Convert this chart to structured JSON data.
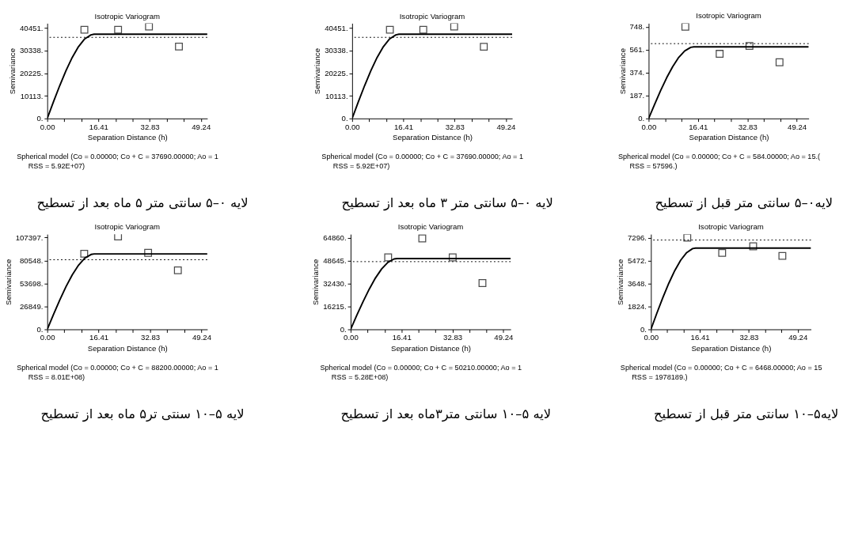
{
  "chart_data": [
    {
      "type": "scatter",
      "title": "Isotropic Variogram",
      "xlabel": "Separation Distance (h)",
      "ylabel": "Semivariance",
      "xlim": [
        0,
        51.3
      ],
      "ylim": [
        0,
        42600
      ],
      "xticks": [
        {
          "value": 0,
          "label": "0.00"
        },
        {
          "value": 5.47,
          "label": null
        },
        {
          "value": 10.94,
          "label": null
        },
        {
          "value": 16.41,
          "label": "16.41"
        },
        {
          "value": 21.88,
          "label": null
        },
        {
          "value": 27.35,
          "label": null
        },
        {
          "value": 32.83,
          "label": "32.83"
        },
        {
          "value": 38.3,
          "label": null
        },
        {
          "value": 43.77,
          "label": null
        },
        {
          "value": 49.24,
          "label": "49.24"
        }
      ],
      "yticks": [
        {
          "value": 0,
          "label": "0."
        },
        {
          "value": 10113,
          "label": "10113."
        },
        {
          "value": 20225,
          "label": "20225."
        },
        {
          "value": 30338,
          "label": "30338."
        },
        {
          "value": 40451,
          "label": "40451."
        }
      ],
      "series": [
        {
          "marker": "square",
          "color": "#000000",
          "x": [
            11.9,
            22.7,
            32.6,
            42.2
          ],
          "values": [
            39700,
            39700,
            41100,
            32200
          ]
        },
        {
          "type": "line",
          "color": "#000000",
          "line_style": "solid",
          "x": [
            0,
            2,
            4,
            6,
            8,
            10,
            12,
            14,
            15,
            51.3
          ],
          "values": [
            0,
            7500,
            14700,
            21400,
            27300,
            32100,
            35600,
            37400,
            37700,
            37700
          ]
        }
      ],
      "ref_lines": [
        {
          "axis": "y",
          "value": 36300,
          "color": "#000000",
          "line_style": "dotted"
        }
      ],
      "annotations": [
        "Spherical model (Co = 0.00000; Co + C = 37690.00000; Ao = 1",
        "RSS = 5.92E+07)",
        "لایه ۰–۵ سانتی متر ۵ ماه بعد از تسطیح"
      ]
    },
    {
      "type": "scatter",
      "title": "Isotropic Variogram",
      "xlabel": "Separation Distance (h)",
      "ylabel": "Semivariance",
      "xlim": [
        0,
        51.3
      ],
      "ylim": [
        0,
        42600
      ],
      "xticks": [
        {
          "value": 0,
          "label": "0.00"
        },
        {
          "value": 5.47,
          "label": null
        },
        {
          "value": 10.94,
          "label": null
        },
        {
          "value": 16.41,
          "label": "16.41"
        },
        {
          "value": 21.88,
          "label": null
        },
        {
          "value": 27.35,
          "label": null
        },
        {
          "value": 32.83,
          "label": "32.83"
        },
        {
          "value": 38.3,
          "label": null
        },
        {
          "value": 43.77,
          "label": null
        },
        {
          "value": 49.24,
          "label": "49.24"
        }
      ],
      "yticks": [
        {
          "value": 0,
          "label": "0."
        },
        {
          "value": 10113,
          "label": "10113."
        },
        {
          "value": 20225,
          "label": "20225."
        },
        {
          "value": 30338,
          "label": "30338."
        },
        {
          "value": 40451,
          "label": "40451."
        }
      ],
      "series": [
        {
          "marker": "square",
          "color": "#000000",
          "x": [
            12.1,
            22.8,
            32.7,
            42.2
          ],
          "values": [
            39700,
            39700,
            41100,
            32100
          ]
        },
        {
          "type": "line",
          "color": "#000000",
          "line_style": "solid",
          "x": [
            0,
            2,
            4,
            6,
            8,
            10,
            12,
            14,
            15,
            51.3
          ],
          "values": [
            0,
            7500,
            14700,
            21400,
            27300,
            32100,
            35600,
            37400,
            37700,
            37700
          ]
        }
      ],
      "ref_lines": [
        {
          "axis": "y",
          "value": 36300,
          "color": "#000000",
          "line_style": "dotted"
        }
      ],
      "annotations": [
        "Spherical model (Co = 0.00000; Co + C = 37690.00000; Ao = 1",
        "RSS = 5.92E+07)",
        "لایه ۰–۵ سانتی متر ۳ ماه بعد از تسطیح"
      ]
    },
    {
      "type": "scatter",
      "title": "Isotropic Variogram",
      "xlabel": "Separation Distance (h)",
      "ylabel": "Semivariance",
      "xlim": [
        0,
        53.2
      ],
      "ylim": [
        0,
        776
      ],
      "xticks": [
        {
          "value": 0,
          "label": "0.00"
        },
        {
          "value": 5.47,
          "label": null
        },
        {
          "value": 10.94,
          "label": null
        },
        {
          "value": 16.41,
          "label": "16.41"
        },
        {
          "value": 21.88,
          "label": null
        },
        {
          "value": 27.35,
          "label": null
        },
        {
          "value": 32.83,
          "label": "32.83"
        },
        {
          "value": 38.3,
          "label": null
        },
        {
          "value": 43.77,
          "label": null
        },
        {
          "value": 49.24,
          "label": "49.24"
        }
      ],
      "yticks": [
        {
          "value": 0,
          "label": "0."
        },
        {
          "value": 187,
          "label": "187."
        },
        {
          "value": 374,
          "label": "374."
        },
        {
          "value": 561,
          "label": "561."
        },
        {
          "value": 748,
          "label": "748."
        }
      ],
      "series": [
        {
          "marker": "square",
          "color": "#000000",
          "x": [
            12.2,
            23.6,
            33.5,
            43.5
          ],
          "values": [
            748,
            527,
            591,
            458
          ]
        },
        {
          "type": "line",
          "color": "#000000",
          "line_style": "solid",
          "x": [
            0,
            2,
            4,
            6,
            8,
            10,
            12,
            14,
            15,
            53.2
          ],
          "values": [
            0,
            116,
            228,
            332,
            423,
            498,
            551,
            580,
            584,
            584
          ]
        }
      ],
      "ref_lines": [
        {
          "axis": "y",
          "value": 610,
          "color": "#000000",
          "line_style": "dotted"
        }
      ],
      "annotations": [
        "Spherical model (Co = 0.00000; Co + C = 584.00000; Ao = 15.(",
        "RSS = 57596.)",
        "لایه۰–۵ سانتی متر قبل از تسطیح"
      ]
    },
    {
      "type": "scatter",
      "title": "Isotropic Variogram",
      "xlabel": "Separation Distance (h)",
      "ylabel": "Semivariance",
      "xlim": [
        0,
        51.1
      ],
      "ylim": [
        0,
        111300
      ],
      "xticks": [
        {
          "value": 0,
          "label": "0.00"
        },
        {
          "value": 5.47,
          "label": null
        },
        {
          "value": 10.94,
          "label": null
        },
        {
          "value": 16.41,
          "label": "16.41"
        },
        {
          "value": 21.88,
          "label": null
        },
        {
          "value": 27.35,
          "label": null
        },
        {
          "value": 32.83,
          "label": "32.83"
        },
        {
          "value": 38.3,
          "label": null
        },
        {
          "value": 43.77,
          "label": null
        },
        {
          "value": 49.24,
          "label": "49.24"
        }
      ],
      "yticks": [
        {
          "value": 0,
          "label": "0."
        },
        {
          "value": 26849,
          "label": "26849."
        },
        {
          "value": 53698,
          "label": "53698."
        },
        {
          "value": 80548,
          "label": "80548."
        },
        {
          "value": 107397,
          "label": "107397."
        }
      ],
      "series": [
        {
          "marker": "square",
          "color": "#000000",
          "x": [
            11.8,
            22.6,
            32.2,
            41.7
          ],
          "values": [
            88500,
            108700,
            89500,
            69000
          ]
        },
        {
          "type": "line",
          "color": "#000000",
          "line_style": "solid",
          "x": [
            0,
            2,
            4,
            6,
            8,
            10,
            12,
            14,
            15,
            51.1
          ],
          "values": [
            0,
            17500,
            34400,
            50100,
            63900,
            75100,
            83300,
            87600,
            88200,
            88200
          ]
        }
      ],
      "ref_lines": [
        {
          "axis": "y",
          "value": 81400,
          "color": "#000000",
          "line_style": "dotted"
        }
      ],
      "annotations": [
        "Spherical model (Co = 0.00000; Co + C = 88200.00000; Ao = 1",
        "RSS = 8.01E+08)",
        "لایه ۵–۱۰ سنتی  تر۵ ماه بعد از تسطیح"
      ]
    },
    {
      "type": "scatter",
      "title": "Isotropic Variogram",
      "xlabel": "Separation Distance (h)",
      "ylabel": "Semivariance",
      "xlim": [
        0,
        51.6
      ],
      "ylim": [
        0,
        67460
      ],
      "xticks": [
        {
          "value": 0,
          "label": "0.00"
        },
        {
          "value": 5.47,
          "label": null
        },
        {
          "value": 10.94,
          "label": null
        },
        {
          "value": 16.41,
          "label": "16.41"
        },
        {
          "value": 21.88,
          "label": null
        },
        {
          "value": 27.35,
          "label": null
        },
        {
          "value": 32.83,
          "label": "32.83"
        },
        {
          "value": 38.3,
          "label": null
        },
        {
          "value": 43.77,
          "label": null
        },
        {
          "value": 49.24,
          "label": "49.24"
        }
      ],
      "yticks": [
        {
          "value": 0,
          "label": "0."
        },
        {
          "value": 16215,
          "label": "16215."
        },
        {
          "value": 32430,
          "label": "32430."
        },
        {
          "value": 48645,
          "label": "48645."
        },
        {
          "value": 64860,
          "label": "64860."
        }
      ],
      "series": [
        {
          "marker": "square",
          "color": "#000000",
          "x": [
            12.1,
            23.1,
            32.9,
            42.5
          ],
          "values": [
            51000,
            64500,
            51000,
            32800
          ]
        },
        {
          "type": "line",
          "color": "#000000",
          "line_style": "solid",
          "x": [
            0,
            2,
            4,
            6,
            8,
            10,
            12,
            14,
            15,
            51.6
          ],
          "values": [
            0,
            10000,
            19600,
            28500,
            36400,
            42800,
            47400,
            49900,
            50200,
            50200
          ]
        }
      ],
      "ref_lines": [
        {
          "axis": "y",
          "value": 48000,
          "color": "#000000",
          "line_style": "dotted"
        }
      ],
      "annotations": [
        "Spherical model (Co = 0.00000; Co + C = 50210.00000; Ao = 1",
        "RSS = 5.28E+08)",
        "لایه ۵–۱۰ سانتی متر۳ماه بعد از تسطیح"
      ]
    },
    {
      "type": "scatter",
      "title": "Isotropic Variogram",
      "xlabel": "Separation Distance (h)",
      "ylabel": "Semivariance",
      "xlim": [
        0,
        53.7
      ],
      "ylim": [
        0,
        7576
      ],
      "xticks": [
        {
          "value": 0,
          "label": "0.00"
        },
        {
          "value": 5.47,
          "label": null
        },
        {
          "value": 10.94,
          "label": null
        },
        {
          "value": 16.41,
          "label": "16.41"
        },
        {
          "value": 21.88,
          "label": null
        },
        {
          "value": 27.35,
          "label": null
        },
        {
          "value": 32.83,
          "label": "32.83"
        },
        {
          "value": 38.3,
          "label": null
        },
        {
          "value": 43.77,
          "label": null
        },
        {
          "value": 49.24,
          "label": "49.24"
        }
      ],
      "yticks": [
        {
          "value": 0,
          "label": "0."
        },
        {
          "value": 1824,
          "label": "1824."
        },
        {
          "value": 3648,
          "label": "3648."
        },
        {
          "value": 5472,
          "label": "5472."
        },
        {
          "value": 7296,
          "label": "7296."
        }
      ],
      "series": [
        {
          "marker": "square",
          "color": "#000000",
          "x": [
            12.2,
            23.9,
            34.3,
            44.1
          ],
          "values": [
            7300,
            6080,
            6610,
            5850
          ]
        },
        {
          "type": "line",
          "color": "#000000",
          "line_style": "solid",
          "x": [
            0,
            2,
            4,
            6,
            8,
            10,
            12,
            14,
            15,
            53.7
          ],
          "values": [
            0,
            1290,
            2530,
            3670,
            4680,
            5510,
            6110,
            6430,
            6470,
            6470
          ]
        }
      ],
      "ref_lines": [
        {
          "axis": "y",
          "value": 7110,
          "color": "#000000",
          "line_style": "dotted"
        }
      ],
      "annotations": [
        "Spherical model (Co = 0.00000; Co + C = 6468.00000; Ao = 15",
        "RSS = 1978189.)",
        "لایه۵–۱۰ سانتی متر قبل از تسطیح"
      ]
    }
  ]
}
